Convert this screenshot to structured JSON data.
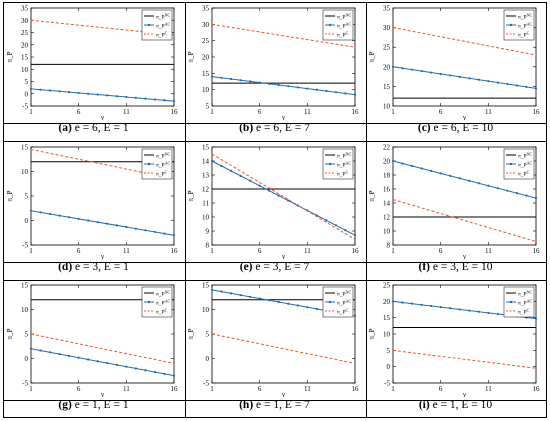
{
  "figure": {
    "panels": [
      {
        "label": "(a)",
        "caption": "e = 6, E = 1"
      },
      {
        "label": "(b)",
        "caption": "e = 6, E = 7"
      },
      {
        "label": "(c)",
        "caption": "e = 6, E = 10"
      },
      {
        "label": "(d)",
        "caption": "e = 3, E = 1"
      },
      {
        "label": "(e)",
        "caption": "e = 3, E = 7"
      },
      {
        "label": "(f)",
        "caption": "e = 3, E = 10"
      },
      {
        "label": "(g)",
        "caption": "e = 1, E = 1"
      },
      {
        "label": "(h)",
        "caption": "e = 1, E = 7"
      },
      {
        "label": "(i)",
        "caption": "e = 1, E = 10"
      }
    ]
  },
  "colors": {
    "nc_line": "#000000",
    "ac_line": "#1f6bb0",
    "c_line": "#e8582a",
    "border": "#000000"
  },
  "chart_data": [
    {
      "type": "line",
      "xlabel": "γ",
      "ylabel": "π_P",
      "xlim": [
        1,
        16
      ],
      "ylim": [
        -5,
        35
      ],
      "xticks": [
        1,
        6,
        11,
        16
      ],
      "yticks": [
        -5,
        0,
        5,
        10,
        15,
        20,
        25,
        30,
        35
      ],
      "legend": [
        "π_P^NC",
        "π_P^AC",
        "π_P^C"
      ],
      "series": [
        {
          "name": "π_P^NC",
          "style": "solid",
          "x": [
            1,
            16
          ],
          "y": [
            12,
            12
          ]
        },
        {
          "name": "π_P^AC",
          "style": "solid-dots",
          "x": [
            1,
            16
          ],
          "y": [
            2,
            -3
          ]
        },
        {
          "name": "π_P^C",
          "style": "dashed",
          "x": [
            1,
            16
          ],
          "y": [
            30,
            24
          ]
        }
      ]
    },
    {
      "type": "line",
      "xlabel": "γ",
      "ylabel": "π_P",
      "xlim": [
        1,
        16
      ],
      "ylim": [
        5,
        35
      ],
      "xticks": [
        1,
        6,
        11,
        16
      ],
      "yticks": [
        5,
        10,
        15,
        20,
        25,
        30,
        35
      ],
      "legend": [
        "π_P^NC",
        "π_P^AC",
        "π_P^C"
      ],
      "series": [
        {
          "name": "π_P^NC",
          "style": "solid",
          "x": [
            1,
            16
          ],
          "y": [
            12,
            12
          ]
        },
        {
          "name": "π_P^AC",
          "style": "solid-dots",
          "x": [
            1,
            16
          ],
          "y": [
            14,
            8.5
          ]
        },
        {
          "name": "π_P^C",
          "style": "dashed",
          "x": [
            1,
            16
          ],
          "y": [
            30,
            23
          ]
        }
      ]
    },
    {
      "type": "line",
      "xlabel": "γ",
      "ylabel": "π_P",
      "xlim": [
        1,
        16
      ],
      "ylim": [
        10,
        35
      ],
      "xticks": [
        1,
        6,
        11,
        16
      ],
      "yticks": [
        10,
        15,
        20,
        25,
        30,
        35
      ],
      "legend": [
        "π_P^NC",
        "π_P^AC",
        "π_P^C"
      ],
      "series": [
        {
          "name": "π_P^NC",
          "style": "solid",
          "x": [
            1,
            16
          ],
          "y": [
            12,
            12
          ]
        },
        {
          "name": "π_P^AC",
          "style": "solid-dots",
          "x": [
            1,
            16
          ],
          "y": [
            20,
            14.5
          ]
        },
        {
          "name": "π_P^C",
          "style": "dashed",
          "x": [
            1,
            16
          ],
          "y": [
            30,
            23
          ]
        }
      ]
    },
    {
      "type": "line",
      "xlabel": "γ",
      "ylabel": "π_P",
      "xlim": [
        1,
        16
      ],
      "ylim": [
        -5,
        15
      ],
      "xticks": [
        1,
        6,
        11,
        16
      ],
      "yticks": [
        -5,
        0,
        5,
        10,
        15
      ],
      "legend": [
        "π_P^NC",
        "π_P^AC",
        "π_P^C"
      ],
      "series": [
        {
          "name": "π_P^NC",
          "style": "solid",
          "x": [
            1,
            16
          ],
          "y": [
            12,
            12
          ]
        },
        {
          "name": "π_P^AC",
          "style": "solid-dots",
          "x": [
            1,
            16
          ],
          "y": [
            2,
            -3
          ]
        },
        {
          "name": "π_P^C",
          "style": "dashed",
          "x": [
            1,
            16
          ],
          "y": [
            14.5,
            8.5
          ]
        }
      ]
    },
    {
      "type": "line",
      "xlabel": "γ",
      "ylabel": "π_P",
      "xlim": [
        1,
        16
      ],
      "ylim": [
        8,
        15
      ],
      "xticks": [
        1,
        6,
        11,
        16
      ],
      "yticks": [
        8,
        9,
        10,
        11,
        12,
        13,
        14,
        15
      ],
      "legend": [
        "π_P^NC",
        "π_P^AC",
        "π_P^C"
      ],
      "series": [
        {
          "name": "π_P^NC",
          "style": "solid",
          "x": [
            1,
            16
          ],
          "y": [
            12,
            12
          ]
        },
        {
          "name": "π_P^AC",
          "style": "solid-dots",
          "x": [
            1,
            16
          ],
          "y": [
            14,
            8.7
          ]
        },
        {
          "name": "π_P^C",
          "style": "dashed",
          "x": [
            1,
            16
          ],
          "y": [
            14.5,
            8.4
          ]
        }
      ]
    },
    {
      "type": "line",
      "xlabel": "γ",
      "ylabel": "π_P",
      "xlim": [
        1,
        16
      ],
      "ylim": [
        8,
        22
      ],
      "xticks": [
        1,
        6,
        11,
        16
      ],
      "yticks": [
        8,
        10,
        12,
        14,
        16,
        18,
        20,
        22
      ],
      "legend": [
        "π_P^NC",
        "π_P^AC",
        "π_P^C"
      ],
      "series": [
        {
          "name": "π_P^NC",
          "style": "solid",
          "x": [
            1,
            16
          ],
          "y": [
            12,
            12
          ]
        },
        {
          "name": "π_P^AC",
          "style": "solid-dots",
          "x": [
            1,
            16
          ],
          "y": [
            20,
            14.7
          ]
        },
        {
          "name": "π_P^C",
          "style": "dashed",
          "x": [
            1,
            16
          ],
          "y": [
            14.5,
            8.5
          ]
        }
      ]
    },
    {
      "type": "line",
      "xlabel": "γ",
      "ylabel": "π_P",
      "xlim": [
        1,
        16
      ],
      "ylim": [
        -5,
        15
      ],
      "xticks": [
        1,
        6,
        11,
        16
      ],
      "yticks": [
        -5,
        0,
        5,
        10,
        15
      ],
      "legend": [
        "π_P^NC",
        "π_P^AC",
        "π_P^C"
      ],
      "series": [
        {
          "name": "π_P^NC",
          "style": "solid",
          "x": [
            1,
            16
          ],
          "y": [
            12,
            12
          ]
        },
        {
          "name": "π_P^AC",
          "style": "solid-dots",
          "x": [
            1,
            16
          ],
          "y": [
            2,
            -3.5
          ]
        },
        {
          "name": "π_P^C",
          "style": "dashed",
          "x": [
            1,
            16
          ],
          "y": [
            5,
            -1
          ]
        }
      ]
    },
    {
      "type": "line",
      "xlabel": "γ",
      "ylabel": "π_P",
      "xlim": [
        1,
        16
      ],
      "ylim": [
        -5,
        15
      ],
      "xticks": [
        1,
        6,
        11,
        16
      ],
      "yticks": [
        -5,
        0,
        5,
        10,
        15
      ],
      "legend": [
        "π_P^NC",
        "π_P^AC",
        "π_P^C"
      ],
      "series": [
        {
          "name": "π_P^NC",
          "style": "solid",
          "x": [
            1,
            16
          ],
          "y": [
            12,
            12
          ]
        },
        {
          "name": "π_P^AC",
          "style": "solid-dots",
          "x": [
            1,
            16
          ],
          "y": [
            14,
            8.7
          ]
        },
        {
          "name": "π_P^C",
          "style": "dashed",
          "x": [
            1,
            16
          ],
          "y": [
            5,
            -1
          ]
        }
      ]
    },
    {
      "type": "line",
      "xlabel": "γ",
      "ylabel": "π_P",
      "xlim": [
        1,
        16
      ],
      "ylim": [
        -5,
        25
      ],
      "xticks": [
        1,
        6,
        11,
        16
      ],
      "yticks": [
        -5,
        0,
        5,
        10,
        15,
        20,
        25
      ],
      "legend": [
        "π_P^NC",
        "π_P^AC",
        "π_P^C"
      ],
      "series": [
        {
          "name": "π_P^NC",
          "style": "solid",
          "x": [
            1,
            16
          ],
          "y": [
            12,
            12
          ]
        },
        {
          "name": "π_P^AC",
          "style": "solid-dots",
          "x": [
            1,
            16
          ],
          "y": [
            20,
            14.7
          ]
        },
        {
          "name": "π_P^C",
          "style": "dashed",
          "x": [
            1,
            16
          ],
          "y": [
            5,
            -0.5
          ]
        }
      ]
    }
  ]
}
